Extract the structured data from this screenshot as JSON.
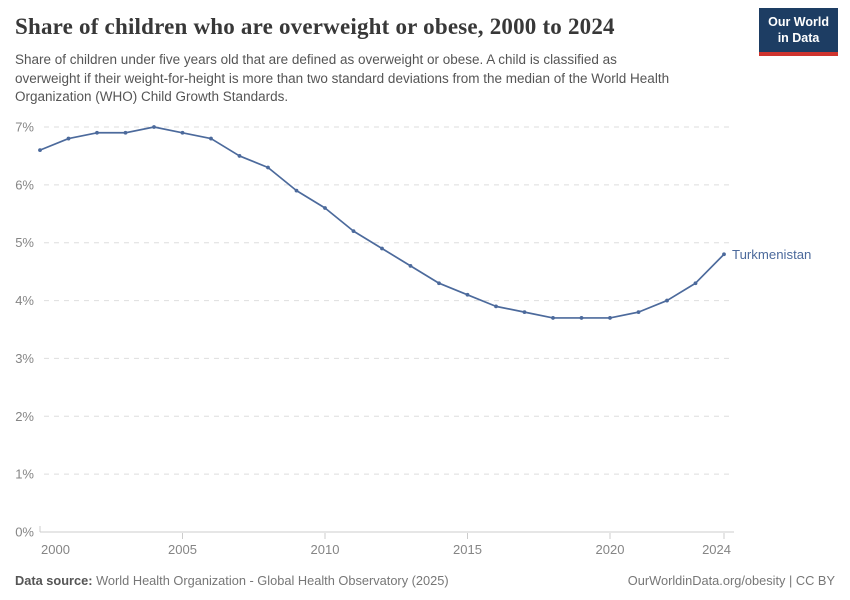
{
  "header": {
    "title": "Share of children who are overweight or obese, 2000 to 2024",
    "subtitle_lines": [
      "Share of children under five years old that are defined as overweight or obese. A child is classified as",
      "overweight if their weight-for-height is more than two standard deviations from the median of the World Health",
      "Organization (WHO) Child Growth Standards."
    ],
    "logo": {
      "line1": "Our World",
      "line2": "in Data"
    }
  },
  "chart_data": {
    "type": "line",
    "title": "Share of children who are overweight or obese, 2000 to 2024",
    "series_label": "Turkmenistan",
    "x": [
      2000,
      2001,
      2002,
      2003,
      2004,
      2005,
      2006,
      2007,
      2008,
      2009,
      2010,
      2011,
      2012,
      2013,
      2014,
      2015,
      2016,
      2017,
      2018,
      2019,
      2020,
      2021,
      2022,
      2023,
      2024
    ],
    "values": [
      6.6,
      6.8,
      6.9,
      6.9,
      7.0,
      6.9,
      6.8,
      6.5,
      6.3,
      5.9,
      5.6,
      5.2,
      4.9,
      4.6,
      4.3,
      4.1,
      3.9,
      3.8,
      3.7,
      3.7,
      3.7,
      3.8,
      4.0,
      4.3,
      4.8
    ],
    "unit": "%",
    "ylim": [
      0,
      7
    ],
    "ytick_step": 1,
    "xticks": [
      2000,
      2005,
      2010,
      2015,
      2020,
      2024
    ],
    "grid": true,
    "legend_position": "end-of-line-label"
  },
  "colors": {
    "line": "#4c6a9c",
    "entity_label": "#4c6a9c",
    "title": "#383838",
    "subtitle": "#555555",
    "tick_label": "#858585",
    "gridline": "#dedede",
    "axis": "#cccccc",
    "logo_navy": "#1d3d63",
    "logo_red": "#cf342e"
  },
  "footer": {
    "datasource_label": "Data source:",
    "datasource_text": " World Health Organization - Global Health Observatory (2025)",
    "link_text": "OurWorldinData.org/obesity | CC BY"
  }
}
